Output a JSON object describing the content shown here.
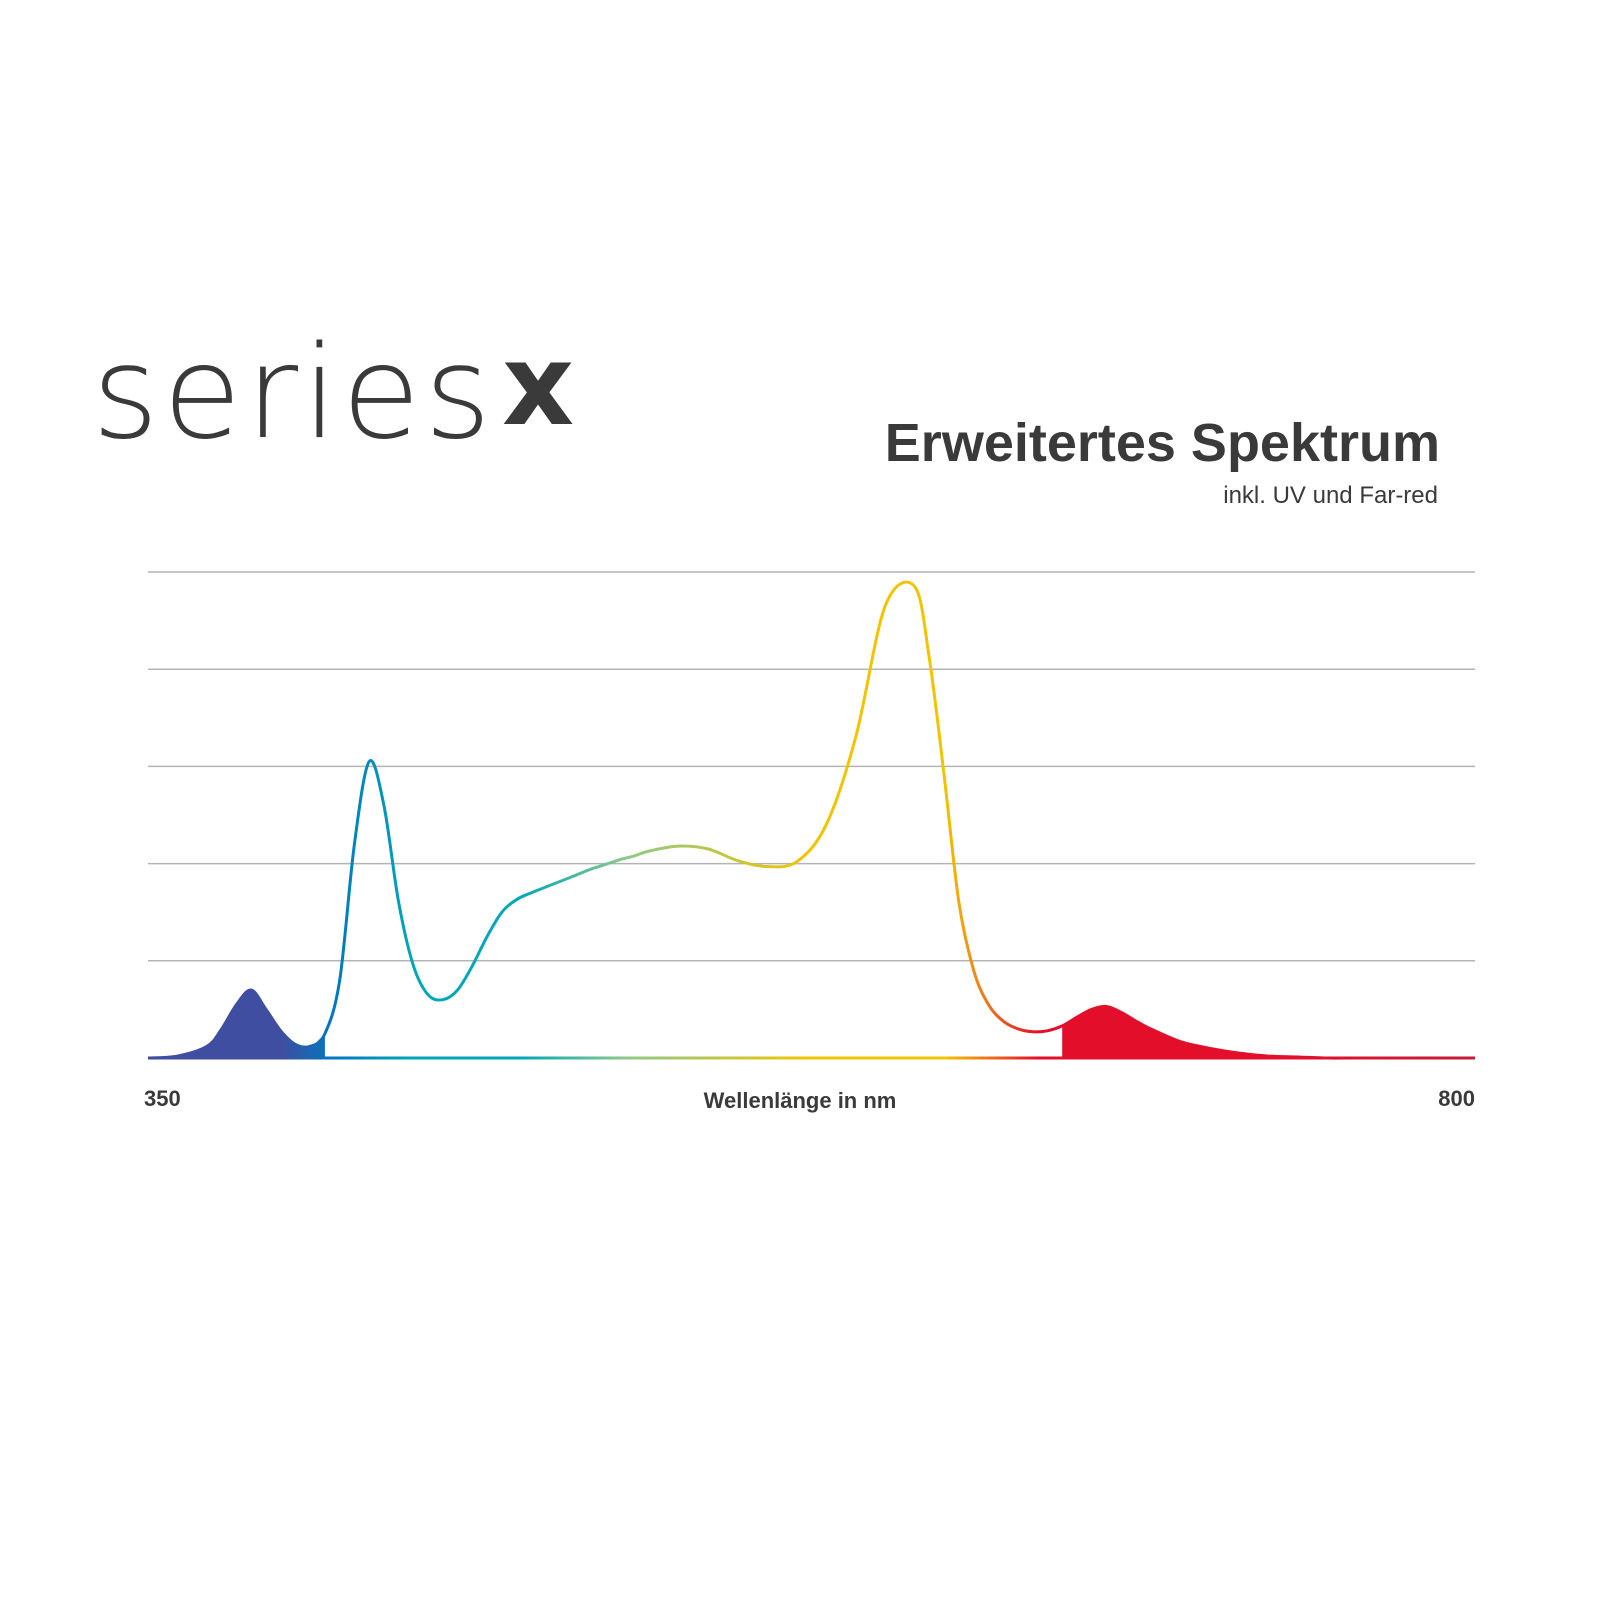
{
  "logo": {
    "word": "series",
    "mark": "x"
  },
  "header": {
    "title": "Erweitertes Spektrum",
    "subtitle": "inkl. UV und Far-red"
  },
  "colors": {
    "text": "#3a3a3a",
    "grid": "#b4b4b4",
    "baseline": "#3a3a3a",
    "uv": "#3f4ea0",
    "blue": "#0077c0",
    "cyan": "#00a7b8",
    "green": "#8cc98a",
    "yellow": "#f2c400",
    "orange": "#f07a1a",
    "red": "#e30f2a",
    "far_red": "#c41c3a"
  },
  "chart_data": {
    "type": "line",
    "title": "Erweitertes Spektrum",
    "subtitle": "inkl. UV und Far-red",
    "xlabel": "Wellenlänge in nm",
    "ylabel": "",
    "xlim": [
      350,
      800
    ],
    "ylim": [
      0,
      5
    ],
    "grid": true,
    "y_gridlines": [
      1,
      2,
      3,
      4,
      5
    ],
    "x_tick_labels": [
      "350",
      "800"
    ],
    "series": [
      {
        "x": [
          350,
          360,
          370,
          375,
          380,
          385,
          390,
          395,
          400,
          405,
          410,
          415,
          420,
          425,
          430,
          435,
          440,
          445,
          450,
          455,
          460,
          465,
          470,
          475,
          480,
          485,
          490,
          495,
          500,
          505,
          510,
          515,
          520,
          530,
          540,
          550,
          560,
          570,
          580,
          590,
          600,
          610,
          615,
          620,
          625,
          630,
          635,
          640,
          645,
          650,
          655,
          660,
          665,
          670,
          675,
          680,
          685,
          690,
          700,
          710,
          720,
          730,
          740,
          750,
          760,
          770,
          780,
          790,
          800
        ],
        "y": [
          0,
          0.02,
          0.12,
          0.3,
          0.55,
          0.7,
          0.5,
          0.28,
          0.14,
          0.12,
          0.25,
          0.8,
          2.2,
          3.05,
          2.6,
          1.6,
          0.95,
          0.65,
          0.6,
          0.7,
          0.95,
          1.25,
          1.5,
          1.63,
          1.7,
          1.76,
          1.82,
          1.88,
          1.94,
          1.99,
          2.04,
          2.08,
          2.13,
          2.18,
          2.15,
          2.03,
          1.97,
          2.02,
          2.4,
          3.3,
          4.65,
          4.85,
          4.1,
          2.9,
          1.6,
          0.9,
          0.55,
          0.38,
          0.3,
          0.27,
          0.28,
          0.33,
          0.42,
          0.5,
          0.53,
          0.47,
          0.38,
          0.3,
          0.17,
          0.1,
          0.05,
          0.02,
          0.01,
          0,
          0,
          0,
          0,
          0,
          0
        ]
      }
    ]
  }
}
